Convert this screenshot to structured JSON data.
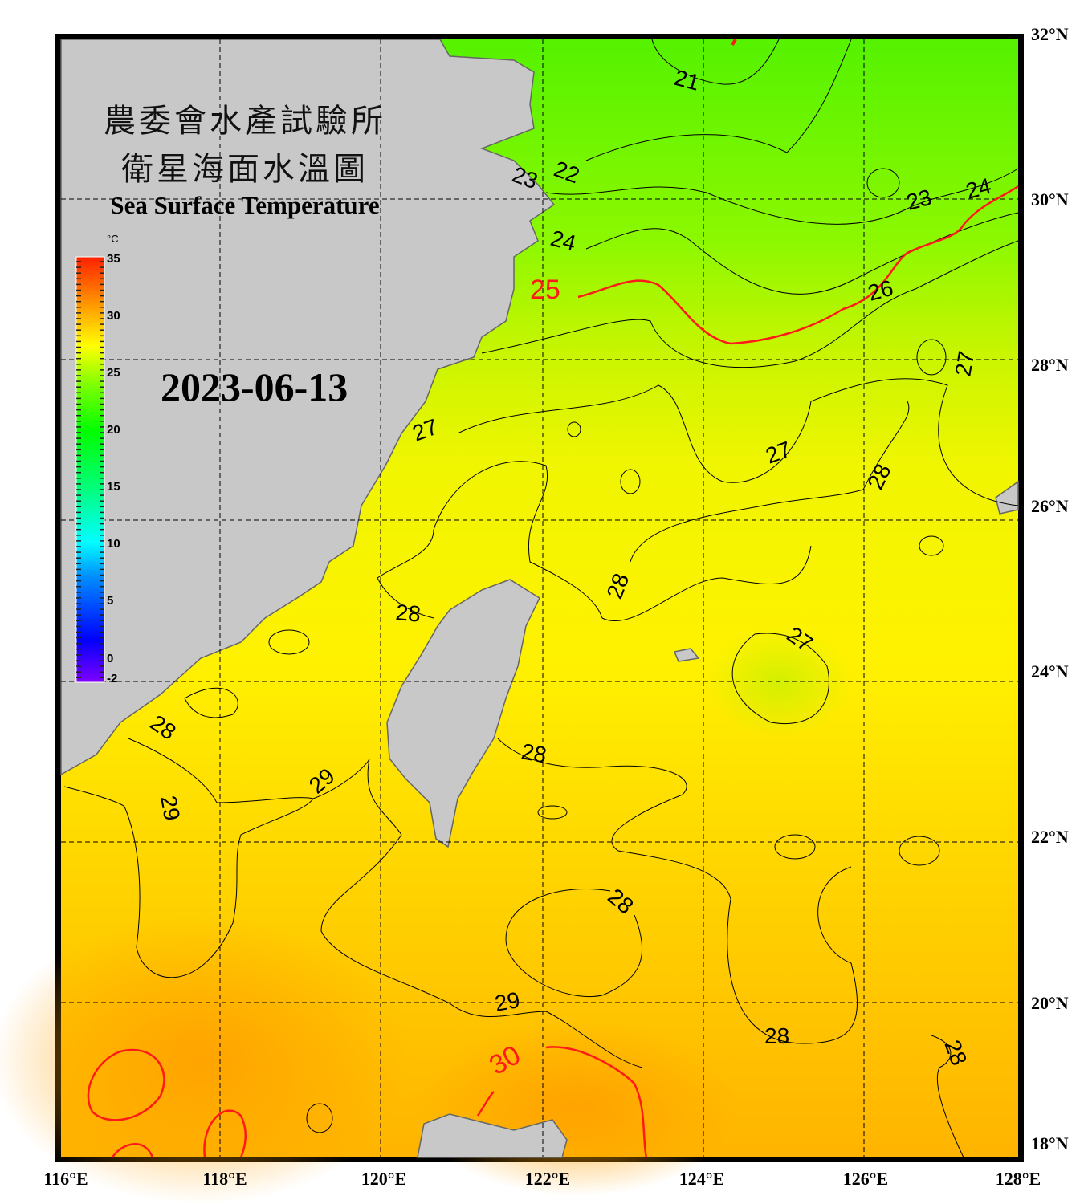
{
  "title": {
    "line1": "農委會水產試驗所",
    "line2": "衛星海面水溫圖",
    "english": "Sea Surface Temperature"
  },
  "date": "2023-06-13",
  "colorbar": {
    "unit": "°C",
    "ticks": [
      "35",
      "30",
      "25",
      "20",
      "15",
      "10",
      "5",
      "0",
      "-2"
    ],
    "min": -2,
    "max": 35,
    "colors": [
      "#8000ff",
      "#0000ff",
      "#0090ff",
      "#00ffff",
      "#00ff80",
      "#00ff00",
      "#80ff00",
      "#ffff00",
      "#ffa000",
      "#ff2000"
    ]
  },
  "axes": {
    "lat_labels": [
      "32°N",
      "30°N",
      "28°N",
      "26°N",
      "24°N",
      "22°N",
      "20°N",
      "18°N"
    ],
    "lon_labels": [
      "116°E",
      "118°E",
      "120°E",
      "122°E",
      "124°E",
      "126°E",
      "128°E"
    ]
  },
  "contour_labels": [
    "21",
    "22",
    "23",
    "23",
    "24",
    "24",
    "25",
    "26",
    "27",
    "27",
    "27",
    "27",
    "28",
    "28",
    "28",
    "28",
    "28",
    "28",
    "28",
    "28",
    "29",
    "29",
    "29",
    "30"
  ],
  "colors": {
    "land": "#c8c8c8",
    "highlight_contour": "#ff1a1a",
    "contour": "#000000",
    "warm": "#ffb000",
    "mid": "#ffff00",
    "cool": "#55f500"
  }
}
